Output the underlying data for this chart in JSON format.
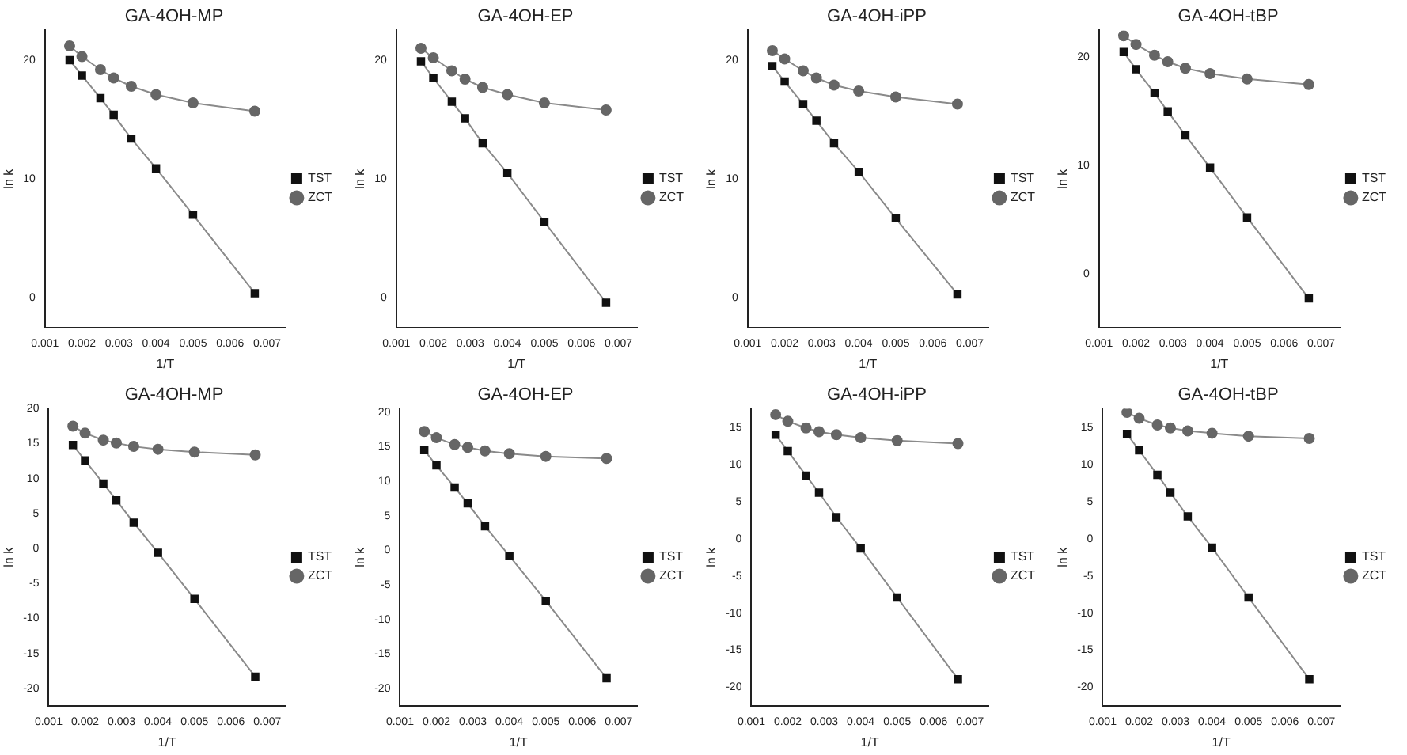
{
  "chart_data": [
    {
      "type": "line",
      "title": "GA-4OH-MP",
      "xlabel": "1/T",
      "ylabel": "ln k",
      "x": [
        0.001667,
        0.002,
        0.0025,
        0.002857,
        0.003333,
        0.004,
        0.005,
        0.006667
      ],
      "xlim": [
        0.001,
        0.0075
      ],
      "xticks": [
        0.001,
        0.002,
        0.003,
        0.004,
        0.005,
        0.006,
        0.007
      ],
      "ylim": [
        -2.5,
        22.5
      ],
      "yticks": [
        0,
        10,
        20
      ],
      "grid": false,
      "legend": "right",
      "series": [
        {
          "name": "TST",
          "color": "#111111",
          "marker": "square",
          "values": [
            20.0,
            18.7,
            16.8,
            15.4,
            13.4,
            10.9,
            7.0,
            0.4
          ]
        },
        {
          "name": "ZCT",
          "color": "#666666",
          "marker": "circle",
          "values": [
            21.2,
            20.3,
            19.2,
            18.5,
            17.8,
            17.1,
            16.4,
            15.7
          ]
        }
      ]
    },
    {
      "type": "line",
      "title": "GA-4OH-EP",
      "xlabel": "1/T",
      "ylabel": "ln k",
      "x": [
        0.001667,
        0.002,
        0.0025,
        0.002857,
        0.003333,
        0.004,
        0.005,
        0.006667
      ],
      "xlim": [
        0.001,
        0.0075
      ],
      "xticks": [
        0.001,
        0.002,
        0.003,
        0.004,
        0.005,
        0.006,
        0.007
      ],
      "ylim": [
        -2.5,
        22.5
      ],
      "yticks": [
        0,
        10,
        20
      ],
      "grid": false,
      "legend": "right",
      "series": [
        {
          "name": "TST",
          "color": "#111111",
          "marker": "square",
          "values": [
            19.9,
            18.5,
            16.5,
            15.1,
            13.0,
            10.5,
            6.4,
            -0.4
          ]
        },
        {
          "name": "ZCT",
          "color": "#666666",
          "marker": "circle",
          "values": [
            21.0,
            20.2,
            19.1,
            18.4,
            17.7,
            17.1,
            16.4,
            15.8
          ]
        }
      ]
    },
    {
      "type": "line",
      "title": "GA-4OH-iPP",
      "xlabel": "1/T",
      "ylabel": "ln k",
      "x": [
        0.001667,
        0.002,
        0.0025,
        0.002857,
        0.003333,
        0.004,
        0.005,
        0.006667
      ],
      "xlim": [
        0.001,
        0.0075
      ],
      "xticks": [
        0.001,
        0.002,
        0.003,
        0.004,
        0.005,
        0.006,
        0.007
      ],
      "ylim": [
        -2.5,
        22.5
      ],
      "yticks": [
        0,
        10,
        20
      ],
      "grid": false,
      "legend": "right",
      "series": [
        {
          "name": "TST",
          "color": "#111111",
          "marker": "square",
          "values": [
            19.5,
            18.2,
            16.3,
            14.9,
            13.0,
            10.6,
            6.7,
            0.3
          ]
        },
        {
          "name": "ZCT",
          "color": "#666666",
          "marker": "circle",
          "values": [
            20.8,
            20.1,
            19.1,
            18.5,
            17.9,
            17.4,
            16.9,
            16.3
          ]
        }
      ]
    },
    {
      "type": "line",
      "title": "GA-4OH-tBP",
      "xlabel": "1/T",
      "ylabel": "ln k",
      "x": [
        0.001667,
        0.002,
        0.0025,
        0.002857,
        0.003333,
        0.004,
        0.005,
        0.006667
      ],
      "xlim": [
        0.001,
        0.0075
      ],
      "xticks": [
        0.001,
        0.002,
        0.003,
        0.004,
        0.005,
        0.006,
        0.007
      ],
      "ylim": [
        -5,
        22.5
      ],
      "yticks": [
        0,
        10,
        20
      ],
      "grid": false,
      "legend": "right",
      "series": [
        {
          "name": "TST",
          "color": "#111111",
          "marker": "square",
          "values": [
            20.5,
            18.9,
            16.7,
            15.0,
            12.8,
            9.8,
            5.2,
            -2.3
          ]
        },
        {
          "name": "ZCT",
          "color": "#666666",
          "marker": "circle",
          "values": [
            22.0,
            21.2,
            20.2,
            19.6,
            19.0,
            18.5,
            18.0,
            17.5
          ]
        }
      ]
    },
    {
      "type": "line",
      "title": "GA-4OH-MP",
      "xlabel": "1/T",
      "ylabel": "ln k",
      "x": [
        0.001667,
        0.002,
        0.0025,
        0.002857,
        0.003333,
        0.004,
        0.005,
        0.006667
      ],
      "xlim": [
        0.001,
        0.0075
      ],
      "xticks": [
        0.001,
        0.002,
        0.003,
        0.004,
        0.005,
        0.006,
        0.007
      ],
      "ylim": [
        -22.5,
        20
      ],
      "yticks": [
        -20,
        -15,
        -10,
        -5,
        0,
        5,
        10,
        15,
        20
      ],
      "grid": false,
      "legend": "right",
      "series": [
        {
          "name": "TST",
          "color": "#111111",
          "marker": "square",
          "values": [
            14.8,
            12.6,
            9.3,
            6.9,
            3.7,
            -0.6,
            -7.2,
            -18.3
          ]
        },
        {
          "name": "ZCT",
          "color": "#666666",
          "marker": "circle",
          "values": [
            17.5,
            16.5,
            15.5,
            15.1,
            14.6,
            14.2,
            13.8,
            13.4
          ]
        }
      ]
    },
    {
      "type": "line",
      "title": "GA-4OH-EP",
      "xlabel": "1/T",
      "ylabel": "ln k",
      "x": [
        0.001667,
        0.002,
        0.0025,
        0.002857,
        0.003333,
        0.004,
        0.005,
        0.006667
      ],
      "xlim": [
        0.001,
        0.0075
      ],
      "xticks": [
        0.001,
        0.002,
        0.003,
        0.004,
        0.005,
        0.006,
        0.007
      ],
      "ylim": [
        -22.5,
        20.5
      ],
      "yticks": [
        -20,
        -15,
        -10,
        -5,
        0,
        5,
        10,
        15,
        20
      ],
      "grid": false,
      "legend": "right",
      "series": [
        {
          "name": "TST",
          "color": "#111111",
          "marker": "square",
          "values": [
            14.5,
            12.3,
            9.1,
            6.8,
            3.5,
            -0.8,
            -7.3,
            -18.5
          ]
        },
        {
          "name": "ZCT",
          "color": "#666666",
          "marker": "circle",
          "values": [
            17.2,
            16.3,
            15.3,
            14.9,
            14.4,
            14.0,
            13.6,
            13.3
          ]
        }
      ]
    },
    {
      "type": "line",
      "title": "GA-4OH-iPP",
      "xlabel": "1/T",
      "ylabel": "ln k",
      "x": [
        0.001667,
        0.002,
        0.0025,
        0.002857,
        0.003333,
        0.004,
        0.005,
        0.006667
      ],
      "xlim": [
        0.001,
        0.0075
      ],
      "xticks": [
        0.001,
        0.002,
        0.003,
        0.004,
        0.005,
        0.006,
        0.007
      ],
      "ylim": [
        -22.5,
        17.5
      ],
      "yticks": [
        -20,
        -15,
        -10,
        -5,
        0,
        5,
        10,
        15
      ],
      "grid": false,
      "legend": "right",
      "series": [
        {
          "name": "TST",
          "color": "#111111",
          "marker": "square",
          "values": [
            14.0,
            11.8,
            8.5,
            6.2,
            2.9,
            -1.3,
            -7.9,
            -18.9
          ]
        },
        {
          "name": "ZCT",
          "color": "#666666",
          "marker": "circle",
          "values": [
            16.7,
            15.8,
            14.9,
            14.4,
            14.0,
            13.6,
            13.2,
            12.8
          ]
        }
      ]
    },
    {
      "type": "line",
      "title": "GA-4OH-tBP",
      "xlabel": "1/T",
      "ylabel": "ln k",
      "x": [
        0.001667,
        0.002,
        0.0025,
        0.002857,
        0.003333,
        0.004,
        0.005,
        0.006667
      ],
      "xlim": [
        0.001,
        0.0075
      ],
      "xticks": [
        0.001,
        0.002,
        0.003,
        0.004,
        0.005,
        0.006,
        0.007
      ],
      "ylim": [
        -22.5,
        17.5
      ],
      "yticks": [
        -20,
        -15,
        -10,
        -5,
        0,
        5,
        10,
        15
      ],
      "grid": false,
      "legend": "right",
      "series": [
        {
          "name": "TST",
          "color": "#111111",
          "marker": "square",
          "values": [
            14.1,
            11.9,
            8.6,
            6.2,
            3.0,
            -1.2,
            -7.9,
            -18.9
          ]
        },
        {
          "name": "ZCT",
          "color": "#666666",
          "marker": "circle",
          "values": [
            17.0,
            16.2,
            15.3,
            14.9,
            14.5,
            14.2,
            13.8,
            13.5
          ]
        }
      ]
    }
  ]
}
